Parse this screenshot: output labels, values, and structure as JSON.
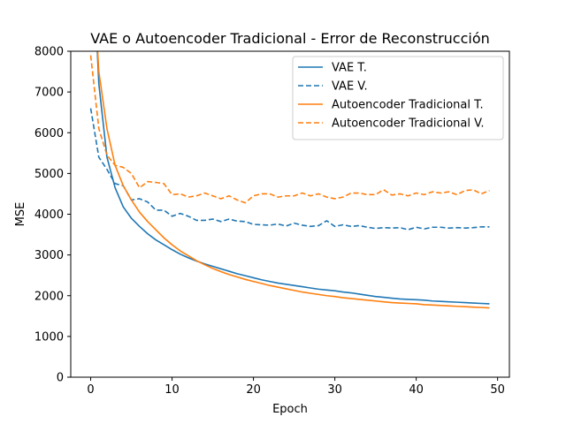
{
  "chart_data": {
    "type": "line",
    "title": "VAE o Autoencoder Tradicional - Error de Reconstrucción",
    "xlabel": "Epoch",
    "ylabel": "MSE",
    "xlim": [
      -2.45,
      51.45
    ],
    "ylim": [
      0,
      8000
    ],
    "xticks": [
      0,
      10,
      20,
      30,
      40,
      50
    ],
    "yticks": [
      0,
      1000,
      2000,
      3000,
      4000,
      5000,
      6000,
      7000,
      8000
    ],
    "grid": false,
    "legend_position": "upper-right",
    "x": [
      0,
      1,
      2,
      3,
      4,
      5,
      6,
      7,
      8,
      9,
      10,
      11,
      12,
      13,
      14,
      15,
      16,
      17,
      18,
      19,
      20,
      21,
      22,
      23,
      24,
      25,
      26,
      27,
      28,
      29,
      30,
      31,
      32,
      33,
      34,
      35,
      36,
      37,
      38,
      39,
      40,
      41,
      42,
      43,
      44,
      45,
      46,
      47,
      48,
      49
    ],
    "series": [
      {
        "name": "VAE T.",
        "color": "#1f77b4",
        "style": "solid",
        "values": [
          11500,
          7200,
          5400,
          4650,
          4180,
          3900,
          3700,
          3520,
          3370,
          3250,
          3130,
          3020,
          2930,
          2850,
          2780,
          2720,
          2660,
          2600,
          2540,
          2490,
          2440,
          2390,
          2350,
          2310,
          2280,
          2250,
          2220,
          2190,
          2160,
          2140,
          2120,
          2090,
          2070,
          2040,
          2010,
          1980,
          1960,
          1940,
          1920,
          1910,
          1900,
          1890,
          1870,
          1860,
          1850,
          1840,
          1830,
          1820,
          1810,
          1800
        ]
      },
      {
        "name": "VAE V.",
        "color": "#1f77b4",
        "style": "dashed",
        "values": [
          6600,
          5400,
          5100,
          4750,
          4700,
          4350,
          4380,
          4300,
          4100,
          4100,
          3950,
          4020,
          3950,
          3850,
          3850,
          3880,
          3820,
          3880,
          3830,
          3820,
          3750,
          3740,
          3730,
          3760,
          3710,
          3780,
          3730,
          3700,
          3720,
          3840,
          3700,
          3740,
          3700,
          3720,
          3680,
          3650,
          3670,
          3660,
          3670,
          3620,
          3680,
          3640,
          3680,
          3680,
          3660,
          3670,
          3660,
          3670,
          3690,
          3690
        ]
      },
      {
        "name": "Autoencoder Tradicional T.",
        "color": "#ff7f0e",
        "style": "solid",
        "values": [
          11000,
          7500,
          6100,
          5200,
          4700,
          4350,
          4050,
          3820,
          3620,
          3420,
          3250,
          3100,
          2980,
          2860,
          2760,
          2670,
          2590,
          2520,
          2460,
          2400,
          2350,
          2300,
          2250,
          2210,
          2170,
          2130,
          2090,
          2060,
          2030,
          2000,
          1980,
          1950,
          1930,
          1910,
          1890,
          1870,
          1850,
          1830,
          1820,
          1810,
          1800,
          1780,
          1770,
          1760,
          1750,
          1740,
          1730,
          1720,
          1710,
          1700
        ]
      },
      {
        "name": "Autoencoder Tradicional V.",
        "color": "#ff7f0e",
        "style": "dashed",
        "values": [
          7900,
          6100,
          5450,
          5200,
          5150,
          5000,
          4650,
          4800,
          4780,
          4750,
          4480,
          4500,
          4420,
          4450,
          4520,
          4450,
          4380,
          4450,
          4350,
          4280,
          4450,
          4500,
          4500,
          4420,
          4450,
          4450,
          4520,
          4450,
          4500,
          4420,
          4380,
          4420,
          4520,
          4520,
          4480,
          4480,
          4600,
          4470,
          4500,
          4450,
          4520,
          4480,
          4550,
          4520,
          4550,
          4480,
          4580,
          4600,
          4500,
          4580
        ]
      }
    ]
  }
}
